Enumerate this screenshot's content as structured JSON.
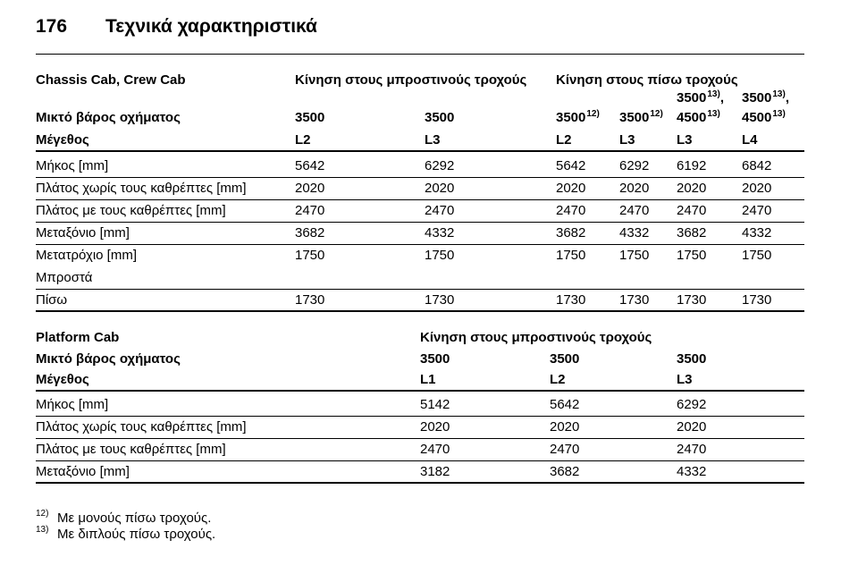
{
  "header": {
    "page": "176",
    "title": "Τεχνικά χαρακτηριστικά"
  },
  "tables": [
    {
      "head_rows": [
        [
          "Chassis Cab, Crew Cab",
          "Κίνηση στους μπροστινούς τροχούς",
          null,
          "Κίνηση στους πίσω τροχούς",
          null,
          null,
          null
        ],
        [
          null,
          null,
          null,
          null,
          null,
          {
            "text": "3500",
            "sup": "13)",
            "after": ","
          },
          {
            "text": "3500",
            "sup": "13)",
            "after": ","
          }
        ],
        [
          "Μικτό βάρος οχήματος",
          "3500",
          "3500",
          {
            "text": "3500",
            "sup": "12)"
          },
          {
            "text": "3500",
            "sup": "12)"
          },
          {
            "text": "4500",
            "sup": "13)"
          },
          {
            "text": "4500",
            "sup": "13)"
          }
        ],
        [
          "Μέγεθος",
          "L2",
          "L3",
          "L2",
          "L3",
          "L3",
          "L4"
        ]
      ],
      "rows": [
        [
          "Μήκος [mm]",
          "5642",
          "6292",
          "5642",
          "6292",
          "6192",
          "6842"
        ],
        [
          "Πλάτος χωρίς τους καθρέπτες [mm]",
          "2020",
          "2020",
          "2020",
          "2020",
          "2020",
          "2020"
        ],
        [
          "Πλάτος με τους καθρέπτες [mm]",
          "2470",
          "2470",
          "2470",
          "2470",
          "2470",
          "2470"
        ],
        [
          "Μεταξόνιο [mm]",
          "3682",
          "4332",
          "3682",
          "4332",
          "3682",
          "4332"
        ],
        [
          "Μετατρόχιο [mm]",
          "1750",
          "1750",
          "1750",
          "1750",
          "1750",
          "1750"
        ],
        [
          "Μπροστά",
          null,
          null,
          null,
          null,
          null,
          null
        ],
        [
          "Πίσω",
          "1730",
          "1730",
          "1730",
          "1730",
          "1730",
          "1730"
        ]
      ]
    },
    {
      "head_rows": [
        [
          "Platform Cab",
          "Κίνηση στους μπροστινούς τροχούς",
          null,
          null
        ],
        [
          "Μικτό βάρος οχήματος",
          "3500",
          "3500",
          "3500"
        ],
        [
          "Μέγεθος",
          "L1",
          "L2",
          "L3"
        ]
      ],
      "rows": [
        [
          "Μήκος [mm]",
          "5142",
          "5642",
          "6292"
        ],
        [
          "Πλάτος χωρίς τους καθρέπτες [mm]",
          "2020",
          "2020",
          "2020"
        ],
        [
          "Πλάτος με τους καθρέπτες [mm]",
          "2470",
          "2470",
          "2470"
        ],
        [
          "Μεταξόνιο [mm]",
          "3182",
          "3682",
          "4332"
        ]
      ]
    }
  ],
  "footnotes": [
    {
      "mark": "12)",
      "text": "Με μονούς πίσω τροχούς."
    },
    {
      "mark": "13)",
      "text": "Με διπλούς πίσω τροχούς."
    }
  ]
}
